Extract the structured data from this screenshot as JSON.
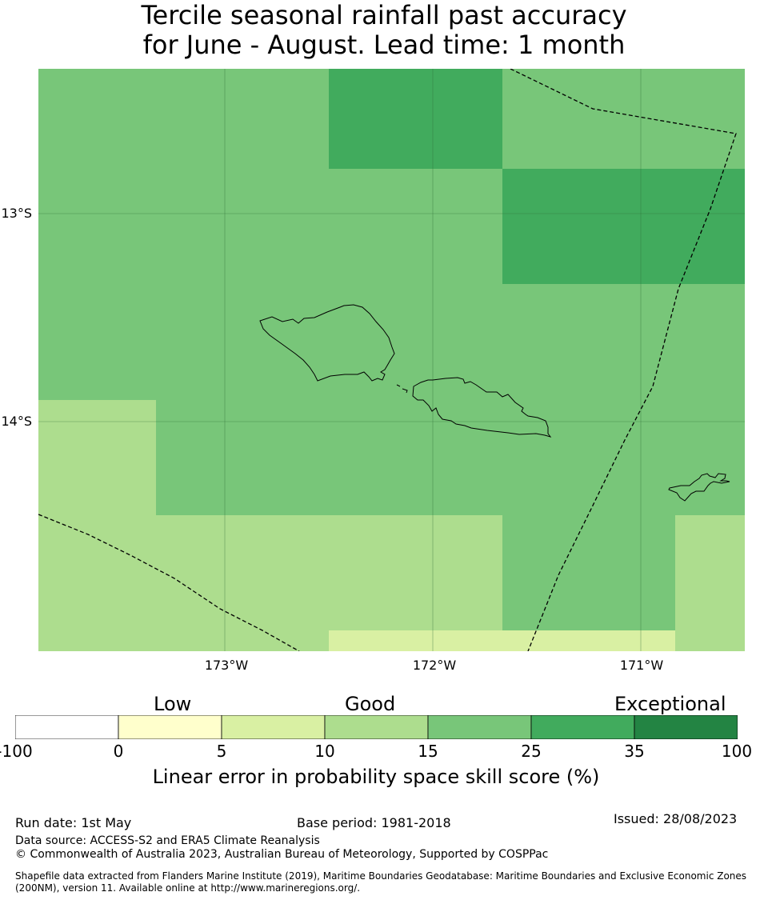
{
  "title": {
    "line1": "Tercile seasonal rainfall past accuracy",
    "line2": "for June - August. Lead time: 1 month"
  },
  "map": {
    "lat_labels": [
      "13°S",
      "14°S"
    ],
    "lon_labels": [
      "173°W",
      "172°W",
      "171°W"
    ]
  },
  "legend": {
    "categories": [
      "Low",
      "Good",
      "Exceptional"
    ],
    "ticks": [
      "-100",
      "0",
      "5",
      "10",
      "15",
      "25",
      "35",
      "100"
    ],
    "colors": [
      "#ffffff",
      "#ffffcc",
      "#d9f0a3",
      "#addd8e",
      "#78c679",
      "#41ab5d",
      "#238443"
    ],
    "title": "Linear error in probability space skill score (%)"
  },
  "footer": {
    "run_date": "Run date: 1st May",
    "base_period": "Base period: 1981-2018",
    "issued": "Issued: 28/08/2023",
    "data_source": "Data source: ACCESS-S2 and ERA5 Climate Reanalysis",
    "copyright": "© Commonwealth of Australia 2023, Australian Bureau of Meteorology, Supported by COSPPac",
    "shapefile": "Shapefile data extracted from Flanders Marine Institute (2019), Maritime Boundaries Geodatabase: Maritime Boundaries and Exclusive Economic Zones (200NM), version 11. Available online at http://www.marineregions.org/."
  }
}
